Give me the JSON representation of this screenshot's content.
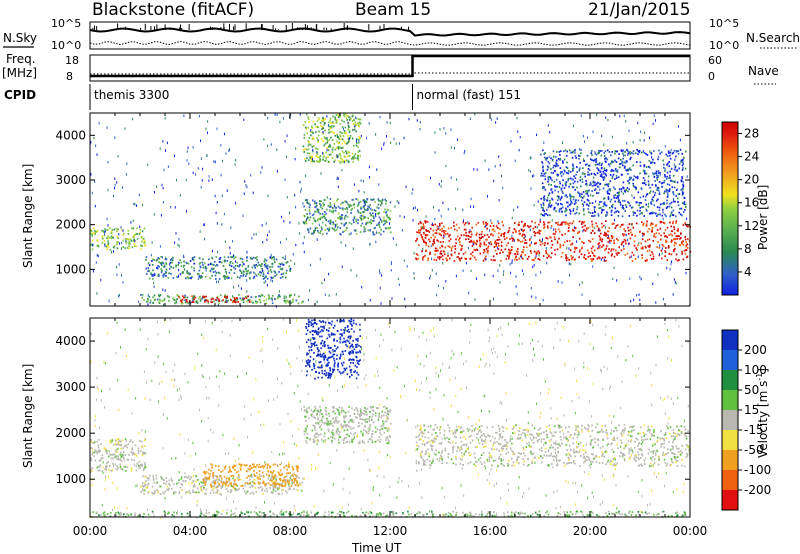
{
  "header": {
    "station": "Blackstone (fitACF)",
    "beam": "Beam 15",
    "date": "21/Jan/2015"
  },
  "summary_panel": {
    "nsky_label": "N.Sky",
    "nsearch_label": "N.Search",
    "freq_label_1": "Freq.",
    "freq_label_2": "[MHz]",
    "nave_label": "Nave",
    "cpid_label": "CPID",
    "noise_top_tick": "10^5",
    "noise_bottom_tick": "10^0",
    "freq_top_tick": "18",
    "freq_bottom_tick": "8",
    "nave_top_tick": "60",
    "nave_bottom_tick": "0",
    "cpid_segments": [
      {
        "label": "themis 3300",
        "start_hour": 0,
        "end_hour": 12.9
      },
      {
        "label": "normal (fast) 151",
        "start_hour": 12.9,
        "end_hour": 24
      }
    ]
  },
  "chart_data": [
    {
      "type": "heatmap",
      "parameter": "Power",
      "ylabel": "Slant Range [km]",
      "xlabel": "Time UT",
      "ylim": [
        180,
        4500
      ],
      "xlim_hours": [
        0,
        24
      ],
      "y_ticks": [
        1000,
        2000,
        3000,
        4000
      ],
      "colorbar": {
        "label": "Power [dB]",
        "ticks": [
          4,
          8,
          12,
          16,
          20,
          24,
          28
        ],
        "colors": [
          "#1020e0",
          "#3060c8",
          "#2a8a50",
          "#5ab050",
          "#90d040",
          "#f0e020",
          "#f0a020",
          "#f06010",
          "#e02010",
          "#d00000"
        ]
      },
      "scatter_bands": [
        {
          "start_hour": 0.0,
          "end_hour": 2.2,
          "range_km": [
            1450,
            1950
          ],
          "power_db": 13
        },
        {
          "start_hour": 2.0,
          "end_hour": 8.5,
          "range_km": [
            250,
            450
          ],
          "power_db": 10
        },
        {
          "start_hour": 2.2,
          "end_hour": 8.0,
          "range_km": [
            800,
            1300
          ],
          "power_db": 7
        },
        {
          "start_hour": 3.5,
          "end_hour": 6.5,
          "range_km": [
            280,
            420
          ],
          "power_db": 28
        },
        {
          "start_hour": 8.5,
          "end_hour": 10.8,
          "range_km": [
            3400,
            4500
          ],
          "power_db": 12
        },
        {
          "start_hour": 8.5,
          "end_hour": 12.0,
          "range_km": [
            1800,
            2600
          ],
          "power_db": 8
        },
        {
          "start_hour": 13.0,
          "end_hour": 24.0,
          "range_km": [
            1200,
            2100
          ],
          "power_db": 26
        },
        {
          "start_hour": 18.0,
          "end_hour": 23.8,
          "range_km": [
            2200,
            3700
          ],
          "power_db": 3
        }
      ]
    },
    {
      "type": "heatmap",
      "parameter": "Velocity",
      "ylabel": "Slant Range [km]",
      "xlabel": "Time UT",
      "ylim": [
        180,
        4500
      ],
      "xlim_hours": [
        0,
        24
      ],
      "y_ticks": [
        1000,
        2000,
        3000,
        4000
      ],
      "x_ticks": [
        "00:00",
        "04:00",
        "08:00",
        "12:00",
        "16:00",
        "20:00",
        "00:00"
      ],
      "colorbar": {
        "label": "Velocity [m s^-1]",
        "ticks": [
          200,
          100,
          50,
          15,
          -15,
          -50,
          -100,
          -200
        ],
        "colors": [
          "#1030c0",
          "#2060d8",
          "#209040",
          "#60c040",
          "#b8b8b0",
          "#f0e040",
          "#f0a020",
          "#f06010",
          "#e01010"
        ]
      },
      "scatter_bands": [
        {
          "start_hour": 0.0,
          "end_hour": 2.2,
          "range_km": [
            1200,
            1900
          ],
          "velocity_ms": 0
        },
        {
          "start_hour": 2.0,
          "end_hour": 8.5,
          "range_km": [
            700,
            1100
          ],
          "velocity_ms": 0
        },
        {
          "start_hour": 4.5,
          "end_hour": 8.3,
          "range_km": [
            850,
            1350
          ],
          "velocity_ms": -70
        },
        {
          "start_hour": 8.6,
          "end_hour": 10.8,
          "range_km": [
            3200,
            4500
          ],
          "velocity_ms": 210
        },
        {
          "start_hour": 8.5,
          "end_hour": 12.0,
          "range_km": [
            1800,
            2600
          ],
          "velocity_ms": 5
        },
        {
          "start_hour": 13.0,
          "end_hour": 24.0,
          "range_km": [
            1300,
            2200
          ],
          "velocity_ms": 0
        },
        {
          "start_hour": 0.0,
          "end_hour": 24.0,
          "range_km": [
            200,
            320
          ],
          "velocity_ms": 20
        }
      ]
    }
  ]
}
